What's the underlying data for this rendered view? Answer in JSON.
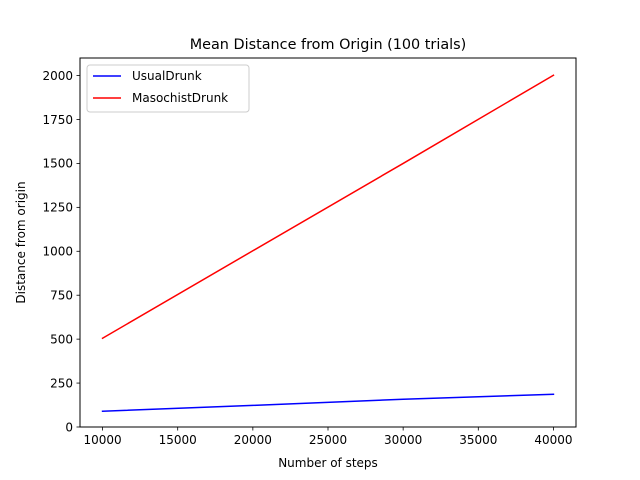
{
  "chart_data": {
    "type": "line",
    "title": "Mean Distance from Origin (100 trials)",
    "xlabel": "Number of steps",
    "ylabel": "Distance from origin",
    "xlim": [
      8500,
      41500
    ],
    "ylim": [
      0,
      2100
    ],
    "xticks": [
      10000,
      15000,
      20000,
      25000,
      30000,
      35000,
      40000
    ],
    "xtick_labels": [
      "10000",
      "15000",
      "20000",
      "25000",
      "30000",
      "35000",
      "40000"
    ],
    "yticks": [
      0,
      250,
      500,
      750,
      1000,
      1250,
      1500,
      1750,
      2000
    ],
    "ytick_labels": [
      "0",
      "250",
      "500",
      "750",
      "1000",
      "1250",
      "1500",
      "1750",
      "2000"
    ],
    "grid": false,
    "legend_position": "top-left",
    "series": [
      {
        "name": "UsualDrunk",
        "color": "#0000ff",
        "x": [
          10000,
          20000,
          30000,
          40000
        ],
        "values": [
          90,
          123,
          158,
          186
        ]
      },
      {
        "name": "MasochistDrunk",
        "color": "#ff0000",
        "x": [
          10000,
          20000,
          30000,
          40000
        ],
        "values": [
          505,
          1003,
          1500,
          2002
        ]
      }
    ]
  }
}
